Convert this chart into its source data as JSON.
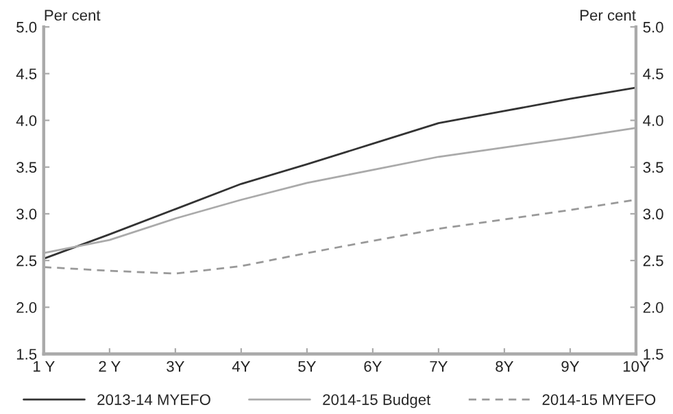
{
  "chart_data": {
    "type": "line",
    "categories": [
      "1 Y",
      "2 Y",
      "3Y",
      "4Y",
      "5Y",
      "6Y",
      "7Y",
      "8Y",
      "9Y",
      "10Y"
    ],
    "series": [
      {
        "name": "2013-14 MYEFO",
        "color": "#333333",
        "line_style": "solid",
        "values": [
          2.52,
          2.78,
          3.05,
          3.32,
          3.53,
          3.75,
          3.97,
          4.1,
          4.23,
          4.35
        ]
      },
      {
        "name": "2014-15 Budget",
        "color": "#aaaaaa",
        "line_style": "solid",
        "values": [
          2.58,
          2.72,
          2.95,
          3.15,
          3.33,
          3.47,
          3.61,
          3.71,
          3.81,
          3.92
        ]
      },
      {
        "name": "2014-15 MYEFO",
        "color": "#999999",
        "line_style": "dashed",
        "values": [
          2.43,
          2.39,
          2.36,
          2.44,
          2.58,
          2.71,
          2.84,
          2.94,
          3.04,
          3.15
        ]
      }
    ],
    "ylabel": "Per cent",
    "y2label": "Per cent",
    "ylim": [
      1.5,
      5.0
    ],
    "yticks": [
      1.5,
      {
        "value": 2,
        "label": "2.0"
      },
      2.5,
      {
        "value": 3,
        "label": "3.0"
      },
      3.5,
      {
        "value": 4,
        "label": "4.0"
      },
      4.5,
      {
        "value": 5,
        "label": "5.0"
      }
    ],
    "y2lim": [
      1.5,
      5.0
    ],
    "y2ticks": [
      1.5,
      {
        "value": 2,
        "label": "2.0"
      },
      2.5,
      {
        "value": 3,
        "label": "3.0"
      },
      3.5,
      {
        "value": 4,
        "label": "4.0"
      },
      4.5,
      {
        "value": 5,
        "label": "5.0"
      }
    ],
    "grid": false,
    "legend": "bottom",
    "marker": "none"
  }
}
